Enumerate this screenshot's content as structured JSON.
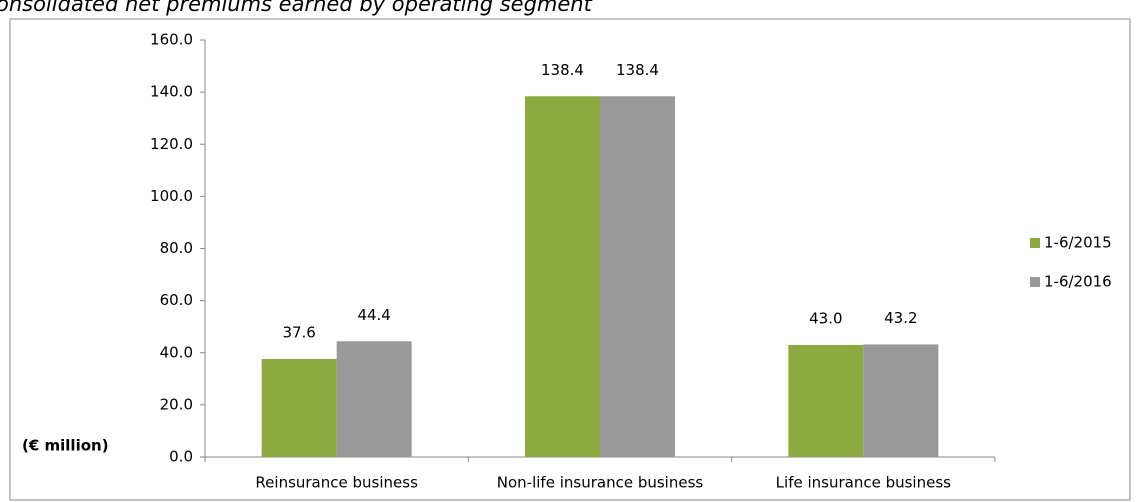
{
  "chart_data": {
    "type": "bar",
    "title": "onsolidated net premiums earned by operating segment",
    "y_label": "(€ million)",
    "categories": [
      "Reinsurance business",
      "Non-life insurance business",
      "Life insurance business"
    ],
    "series": [
      {
        "name": "1-6/2015",
        "color": "#8ea93f",
        "values": [
          37.6,
          138.4,
          43.0
        ],
        "value_labels": [
          "37.6",
          "138.4",
          "43.0"
        ]
      },
      {
        "name": "1-6/2016",
        "color": "#999999",
        "values": [
          44.4,
          138.4,
          43.2
        ],
        "value_labels": [
          "44.4",
          "138.4",
          "43.2"
        ]
      }
    ],
    "ylim": [
      0,
      160
    ],
    "yticks": [
      {
        "value": 0,
        "label": "0.0"
      },
      {
        "value": 20,
        "label": "20.0"
      },
      {
        "value": 40,
        "label": "40.0"
      },
      {
        "value": 60,
        "label": "60.0"
      },
      {
        "value": 80,
        "label": "80.0"
      },
      {
        "value": 100,
        "label": "100.0"
      },
      {
        "value": 120,
        "label": "120.0"
      },
      {
        "value": 140,
        "label": "140.0"
      },
      {
        "value": 160,
        "label": "160.0"
      }
    ],
    "grid": false,
    "legend": "right"
  }
}
